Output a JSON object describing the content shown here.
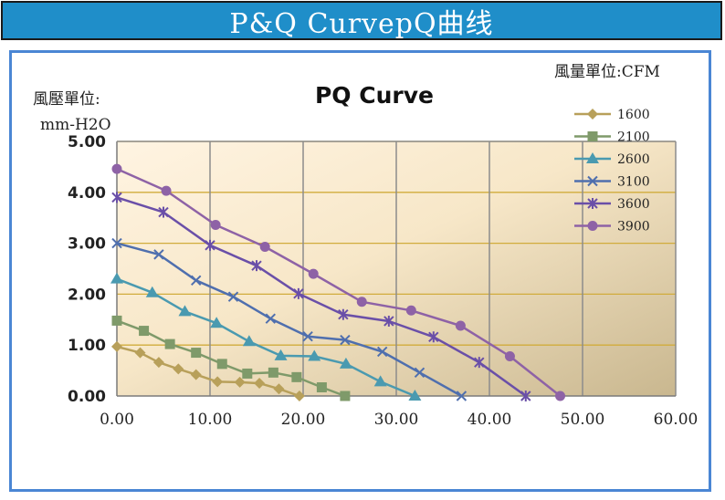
{
  "banner": {
    "title": "P&Q CurvepQ曲线",
    "background": "#1f8ec9"
  },
  "chart_data": {
    "type": "line",
    "title": "PQ Curve",
    "ylabel": "風壓單位:",
    "ylabel_unit": "mm-H2O",
    "xlabel": "風量單位:CFM",
    "xlim": [
      0,
      60
    ],
    "ylim": [
      0,
      5
    ],
    "x_ticks": [
      "0.00",
      "10.00",
      "20.00",
      "30.00",
      "40.00",
      "50.00",
      "60.00"
    ],
    "y_ticks": [
      "0.00",
      "1.00",
      "2.00",
      "3.00",
      "4.00",
      "5.00"
    ],
    "grid": true,
    "legend_position": "top-right",
    "series": [
      {
        "name": "1600",
        "color": "#b8a05a",
        "marker": "diamond",
        "x": [
          0,
          2.5,
          4.5,
          6.6,
          8.5,
          10.8,
          13.2,
          15.3,
          17.4,
          19.6
        ],
        "y": [
          0.97,
          0.85,
          0.66,
          0.53,
          0.42,
          0.28,
          0.27,
          0.25,
          0.14,
          0.0
        ]
      },
      {
        "name": "2100",
        "color": "#7f9a6a",
        "marker": "square",
        "x": [
          0,
          2.9,
          5.7,
          8.5,
          11.3,
          14.0,
          16.8,
          19.3,
          22.0,
          24.5
        ],
        "y": [
          1.48,
          1.28,
          1.02,
          0.85,
          0.63,
          0.44,
          0.46,
          0.37,
          0.17,
          0.0
        ]
      },
      {
        "name": "2600",
        "color": "#4a9ab0",
        "marker": "triangle",
        "x": [
          0,
          3.8,
          7.3,
          10.7,
          14.2,
          17.6,
          21.2,
          24.6,
          28.3,
          32.0
        ],
        "y": [
          2.3,
          2.03,
          1.66,
          1.43,
          1.07,
          0.79,
          0.78,
          0.63,
          0.28,
          0.0
        ]
      },
      {
        "name": "3100",
        "color": "#4f6fae",
        "marker": "x",
        "x": [
          0,
          4.5,
          8.5,
          12.5,
          16.5,
          20.5,
          24.5,
          28.5,
          32.5,
          37.0
        ],
        "y": [
          3.0,
          2.78,
          2.27,
          1.95,
          1.52,
          1.17,
          1.1,
          0.87,
          0.46,
          0.0
        ]
      },
      {
        "name": "3600",
        "color": "#6a4fa8",
        "marker": "asterisk",
        "x": [
          0,
          5.0,
          10.0,
          15.0,
          19.5,
          24.3,
          29.2,
          34.0,
          38.9,
          43.9
        ],
        "y": [
          3.9,
          3.61,
          2.96,
          2.56,
          2.01,
          1.6,
          1.47,
          1.16,
          0.66,
          0.0
        ]
      },
      {
        "name": "3900",
        "color": "#8e62a6",
        "marker": "circle",
        "x": [
          0,
          5.3,
          10.6,
          15.9,
          21.1,
          26.3,
          31.6,
          36.9,
          42.2,
          47.6
        ],
        "y": [
          4.46,
          4.03,
          3.36,
          2.93,
          2.4,
          1.85,
          1.68,
          1.38,
          0.78,
          0.0
        ]
      }
    ]
  }
}
